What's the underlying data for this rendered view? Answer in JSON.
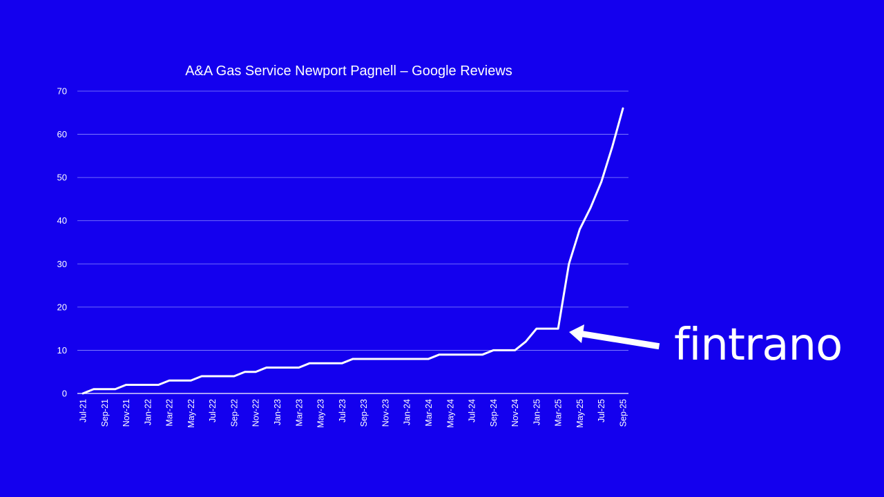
{
  "colors": {
    "background": "#1400ee",
    "line": "#ffffff",
    "grid": "#8c8cff",
    "text": "#ffffff"
  },
  "logo": {
    "text": "fintrano"
  },
  "chart_data": {
    "type": "line",
    "title": "A&A Gas Service Newport Pagnell – Google Reviews",
    "xlabel": "",
    "ylabel": "",
    "ylim": [
      0,
      70
    ],
    "yticks": [
      0,
      10,
      20,
      30,
      40,
      50,
      60,
      70
    ],
    "grid": true,
    "legend": "none",
    "x": [
      "Jul-21",
      "Aug-21",
      "Sep-21",
      "Oct-21",
      "Nov-21",
      "Dec-21",
      "Jan-22",
      "Feb-22",
      "Mar-22",
      "Apr-22",
      "May-22",
      "Jun-22",
      "Jul-22",
      "Aug-22",
      "Sep-22",
      "Oct-22",
      "Nov-22",
      "Dec-22",
      "Jan-23",
      "Feb-23",
      "Mar-23",
      "Apr-23",
      "May-23",
      "Jun-23",
      "Jul-23",
      "Aug-23",
      "Sep-23",
      "Oct-23",
      "Nov-23",
      "Dec-23",
      "Jan-24",
      "Feb-24",
      "Mar-24",
      "Apr-24",
      "May-24",
      "Jun-24",
      "Jul-24",
      "Aug-24",
      "Sep-24",
      "Oct-24",
      "Nov-24",
      "Dec-24",
      "Jan-25",
      "Feb-25",
      "Mar-25",
      "Apr-25",
      "May-25",
      "Jun-25",
      "Jul-25",
      "Aug-25",
      "Sep-25"
    ],
    "xtick_labels": [
      "Jul-21",
      "Sep-21",
      "Nov-21",
      "Jan-22",
      "Mar-22",
      "May-22",
      "Jul-22",
      "Sep-22",
      "Nov-22",
      "Jan-23",
      "Mar-23",
      "May-23",
      "Jul-23",
      "Sep-23",
      "Nov-23",
      "Jan-24",
      "Mar-24",
      "May-24",
      "Jul-24",
      "Sep-24",
      "Nov-24",
      "Jan-25",
      "Mar-25",
      "May-25",
      "Jul-25",
      "Sep-25"
    ],
    "series": [
      {
        "values": [
          0,
          1,
          1,
          1,
          2,
          2,
          2,
          2,
          3,
          3,
          3,
          4,
          4,
          4,
          4,
          5,
          5,
          6,
          6,
          6,
          6,
          7,
          7,
          7,
          7,
          8,
          8,
          8,
          8,
          8,
          8,
          8,
          8,
          9,
          9,
          9,
          9,
          9,
          10,
          10,
          10,
          12,
          15,
          15,
          15,
          30,
          38,
          43,
          49,
          57,
          66
        ]
      }
    ]
  }
}
